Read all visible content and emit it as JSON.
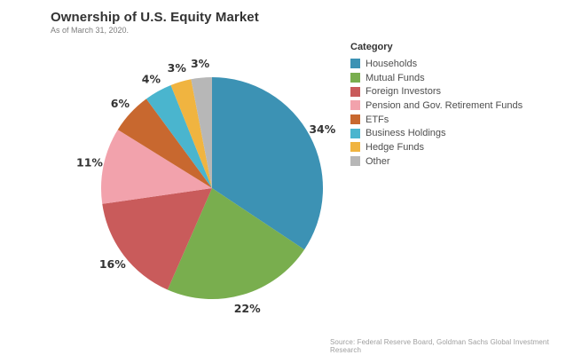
{
  "title": "Ownership of U.S. Equity Market",
  "subtitle": "As of March 31, 2020.",
  "legend": {
    "title": "Category"
  },
  "source": "Source: Federal Reserve Board, Goldman Sachs Global Investment Research",
  "chart_data": {
    "type": "pie",
    "title": "Ownership of U.S. Equity Market",
    "categories": [
      "Households",
      "Mutual Funds",
      "Foreign Investors",
      "Pension and Gov. Retirement Funds",
      "ETFs",
      "Business Holdings",
      "Hedge Funds",
      "Other"
    ],
    "values": [
      34,
      22,
      16,
      11,
      6,
      4,
      3,
      3
    ],
    "labels": [
      "34%",
      "22%",
      "16%",
      "11%",
      "6%",
      "4%",
      "3%",
      "3%"
    ],
    "colors": [
      "#3C92B4",
      "#79AE4E",
      "#C95B5B",
      "#F2A2AC",
      "#C8682F",
      "#4AB5CE",
      "#F0B440",
      "#B7B7B7"
    ],
    "start_angle_deg": 0,
    "direction": "clockwise",
    "legend_position": "right"
  }
}
